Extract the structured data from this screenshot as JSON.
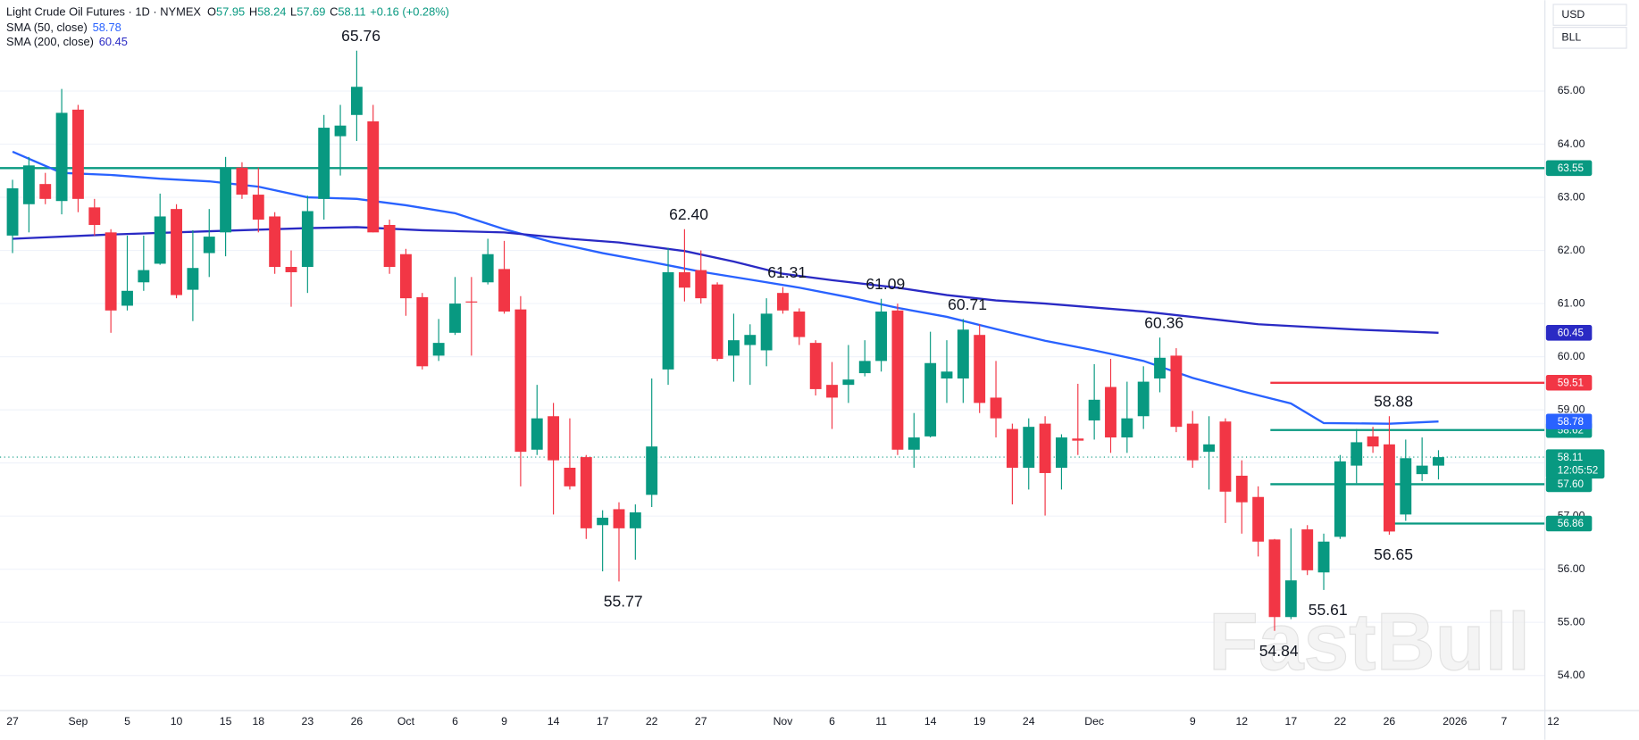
{
  "chart_data": {
    "type": "candlestick",
    "title": "Light Crude Oil Futures · 1D · NYMEX",
    "ohlc_legend": [
      {
        "key": "O",
        "value": 57.95
      },
      {
        "key": "H",
        "value": 58.24
      },
      {
        "key": "L",
        "value": 57.69
      },
      {
        "key": "C",
        "value": 58.11
      }
    ],
    "change": "+0.16 (+0.28%)",
    "currency": "USD",
    "unit": "BLL",
    "watermark": "FastBull",
    "countdown": "12:05:52",
    "up_color": "#089981",
    "down_color": "#f23645",
    "categories": [
      "27",
      null,
      null,
      null,
      "Sep",
      null,
      null,
      "5",
      null,
      null,
      "10",
      null,
      null,
      "15",
      null,
      "18",
      null,
      null,
      "23",
      null,
      null,
      "26",
      null,
      null,
      "Oct",
      null,
      null,
      "6",
      null,
      null,
      "9",
      null,
      null,
      "14",
      null,
      null,
      "17",
      null,
      null,
      "22",
      null,
      null,
      "27",
      null,
      null,
      null,
      null,
      "Nov",
      null,
      null,
      "6",
      null,
      null,
      "11",
      null,
      null,
      "14",
      null,
      null,
      "19",
      null,
      null,
      "24",
      null,
      null,
      null,
      "Dec",
      null,
      null,
      null,
      null,
      null,
      "9",
      null,
      null,
      "12",
      null,
      null,
      "17",
      null,
      null,
      "22",
      null,
      null,
      "26",
      null,
      null,
      null,
      "2026",
      null,
      null,
      "7",
      null,
      null,
      "12"
    ],
    "open": [
      62.28,
      62.87,
      63.25,
      62.93,
      64.65,
      62.81,
      62.34,
      60.96,
      61.4,
      61.75,
      62.78,
      61.26,
      61.95,
      62.34,
      63.56,
      63.05,
      62.64,
      61.69,
      61.69,
      62.97,
      64.15,
      64.55,
      64.43,
      62.48,
      61.93,
      61.12,
      60.02,
      60.45,
      61.04,
      61.4,
      61.65,
      60.89,
      58.25,
      58.88,
      57.91,
      58.11,
      56.83,
      57.13,
      56.77,
      57.4,
      59.76,
      61.59,
      61.63,
      61.36,
      60.02,
      60.22,
      60.12,
      61.2,
      60.85,
      60.26,
      59.47,
      59.47,
      59.69,
      59.92,
      60.87,
      58.25,
      58.5,
      59.59,
      59.59,
      60.41,
      59.23,
      58.64,
      57.91,
      58.74,
      57.91,
      58.46,
      58.8,
      59.43,
      58.48,
      58.88,
      59.59,
      60.02,
      58.74,
      58.21,
      58.78,
      57.76,
      57.36,
      56.56,
      55.1,
      56.75,
      55.94,
      56.61,
      57.95,
      58.5,
      58.35,
      57.03,
      57.79,
      57.95,
      null,
      null,
      null,
      null,
      null,
      null,
      null
    ],
    "high": [
      63.33,
      63.76,
      63.46,
      65.04,
      64.74,
      62.97,
      62.4,
      62.28,
      62.28,
      63.07,
      62.87,
      62.38,
      62.78,
      63.76,
      63.66,
      63.56,
      62.72,
      62.0,
      63.03,
      64.55,
      64.74,
      65.76,
      64.74,
      62.58,
      62.03,
      61.2,
      60.71,
      61.5,
      61.5,
      62.22,
      62.18,
      61.14,
      59.47,
      59.13,
      58.84,
      58.15,
      57.11,
      57.26,
      57.22,
      59.59,
      62.05,
      62.4,
      62.0,
      61.4,
      60.81,
      60.61,
      61.1,
      61.31,
      60.91,
      60.31,
      59.9,
      60.22,
      60.31,
      61.09,
      61.0,
      58.94,
      60.47,
      60.31,
      60.71,
      60.61,
      59.92,
      58.74,
      58.84,
      58.88,
      58.54,
      59.49,
      59.86,
      59.96,
      59.53,
      59.82,
      60.36,
      60.16,
      58.98,
      58.88,
      58.84,
      58.05,
      57.56,
      56.57,
      56.77,
      56.83,
      56.67,
      58.15,
      58.64,
      58.68,
      58.88,
      58.44,
      58.48,
      58.24,
      null,
      null,
      null,
      null,
      null,
      null,
      null
    ],
    "low": [
      61.95,
      62.34,
      62.87,
      62.68,
      62.72,
      62.28,
      60.45,
      60.87,
      61.24,
      61.73,
      61.1,
      60.67,
      61.5,
      61.89,
      62.97,
      62.34,
      61.56,
      60.94,
      61.2,
      62.58,
      63.41,
      64.06,
      62.34,
      61.56,
      60.77,
      59.76,
      59.92,
      60.41,
      60.02,
      61.36,
      60.81,
      57.56,
      58.15,
      57.03,
      57.5,
      56.57,
      55.96,
      55.77,
      56.18,
      57.17,
      59.47,
      61.04,
      61.0,
      59.92,
      59.53,
      59.47,
      59.82,
      60.81,
      60.22,
      59.27,
      58.64,
      59.13,
      59.63,
      59.72,
      58.15,
      57.91,
      58.48,
      59.13,
      59.13,
      58.94,
      58.48,
      57.22,
      57.5,
      57.01,
      57.5,
      58.15,
      58.44,
      58.19,
      58.19,
      58.64,
      59.33,
      58.58,
      57.91,
      57.5,
      56.87,
      56.67,
      56.24,
      54.84,
      55.06,
      55.89,
      55.61,
      56.57,
      57.62,
      58.19,
      56.65,
      56.91,
      57.66,
      57.69,
      null,
      null,
      null,
      null,
      null,
      null,
      null
    ],
    "close": [
      63.17,
      63.6,
      62.97,
      64.59,
      62.97,
      62.48,
      60.87,
      61.24,
      61.63,
      62.64,
      61.16,
      61.67,
      62.26,
      63.56,
      63.05,
      62.58,
      61.69,
      61.59,
      62.74,
      64.31,
      64.35,
      65.08,
      62.34,
      61.69,
      61.1,
      59.82,
      60.26,
      61.0,
      61.02,
      61.93,
      60.85,
      58.21,
      58.84,
      58.05,
      57.56,
      56.77,
      56.97,
      56.77,
      57.07,
      58.31,
      61.59,
      61.3,
      61.1,
      59.96,
      60.31,
      60.41,
      60.81,
      60.87,
      60.37,
      59.39,
      59.23,
      59.57,
      59.92,
      60.85,
      58.25,
      58.48,
      59.88,
      59.72,
      60.51,
      59.13,
      58.84,
      57.91,
      58.68,
      57.81,
      58.48,
      58.42,
      59.19,
      58.48,
      58.84,
      59.53,
      59.98,
      58.68,
      58.05,
      58.35,
      57.46,
      57.26,
      56.52,
      55.1,
      55.79,
      55.98,
      56.52,
      58.03,
      58.39,
      58.31,
      56.71,
      58.09,
      57.95,
      58.11,
      null,
      null,
      null,
      null,
      null,
      null,
      null
    ],
    "series": [
      {
        "name": "SMA (50, close)",
        "color": "#2962ff",
        "x": [
          0,
          3,
          6,
          9,
          12,
          15,
          18,
          21,
          24,
          27,
          30,
          33,
          36,
          39,
          42,
          45,
          48,
          51,
          54,
          57,
          60,
          63,
          66,
          69,
          72,
          75,
          78,
          80,
          84,
          87
        ],
        "values": [
          63.86,
          63.46,
          63.42,
          63.35,
          63.3,
          63.2,
          63.0,
          62.97,
          62.85,
          62.7,
          62.4,
          62.15,
          61.95,
          61.78,
          61.6,
          61.45,
          61.3,
          61.12,
          60.92,
          60.75,
          60.52,
          60.3,
          60.12,
          59.92,
          59.6,
          59.35,
          59.12,
          58.75,
          58.74,
          58.78
        ]
      },
      {
        "name": "SMA (200, close)",
        "color": "#2a2ac4",
        "x": [
          0,
          6,
          12,
          18,
          21,
          25,
          30,
          34,
          37,
          41,
          44,
          47,
          50,
          54,
          57,
          60,
          63,
          69,
          76,
          82,
          87
        ],
        "values": [
          62.22,
          62.3,
          62.36,
          62.42,
          62.44,
          62.38,
          62.34,
          62.22,
          62.15,
          61.99,
          61.79,
          61.56,
          61.44,
          61.3,
          61.16,
          61.06,
          61.0,
          60.85,
          60.61,
          60.51,
          60.45
        ]
      }
    ],
    "hlines": [
      {
        "value": 63.55,
        "label": "63.55",
        "color": "#089981",
        "start": 0
      },
      {
        "value": 59.51,
        "label": "59.51",
        "color": "#f23645",
        "start": 77
      },
      {
        "value": 58.62,
        "label": "58.62",
        "color": "#089981",
        "start": 77
      },
      {
        "value": 57.6,
        "label": "57.60",
        "color": "#089981",
        "start": 77
      },
      {
        "value": 56.86,
        "label": "56.86",
        "color": "#089981",
        "start": 84
      }
    ],
    "annotations": [
      {
        "index": 21,
        "value": 65.76,
        "label": "65.76",
        "position": "above"
      },
      {
        "index": 41,
        "value": 62.4,
        "label": "62.40",
        "position": "above"
      },
      {
        "index": 47,
        "value": 61.31,
        "label": "61.31",
        "position": "above"
      },
      {
        "index": 53,
        "value": 61.09,
        "label": "61.09",
        "position": "above"
      },
      {
        "index": 58,
        "value": 60.71,
        "label": "60.71",
        "position": "above"
      },
      {
        "index": 70,
        "value": 60.36,
        "label": "60.36",
        "position": "above"
      },
      {
        "index": 84,
        "value": 58.88,
        "label": "58.88",
        "position": "above"
      },
      {
        "index": 37,
        "value": 55.77,
        "label": "55.77",
        "position": "below"
      },
      {
        "index": 77,
        "value": 54.84,
        "label": "54.84",
        "position": "below"
      },
      {
        "index": 80,
        "value": 55.61,
        "label": "55.61",
        "position": "below"
      },
      {
        "index": 84,
        "value": 56.65,
        "label": "56.65",
        "position": "below"
      }
    ],
    "ylim": [
      53.34,
      66.71
    ],
    "yticks": [
      {
        "value": 54,
        "label": "54.00"
      },
      {
        "value": 55,
        "label": "55.00"
      },
      {
        "value": 56,
        "label": "56.00"
      },
      {
        "value": 57,
        "label": "57.00"
      },
      {
        "value": 58,
        "label": "58.00"
      },
      {
        "value": 59,
        "label": "59.00"
      },
      {
        "value": 60,
        "label": "60.00"
      },
      {
        "value": 61,
        "label": "61.00"
      },
      {
        "value": 62,
        "label": "62.00"
      },
      {
        "value": 63,
        "label": "63.00"
      },
      {
        "value": 64,
        "label": "64.00"
      },
      {
        "value": 65,
        "label": "65.00"
      }
    ],
    "grid": true
  }
}
